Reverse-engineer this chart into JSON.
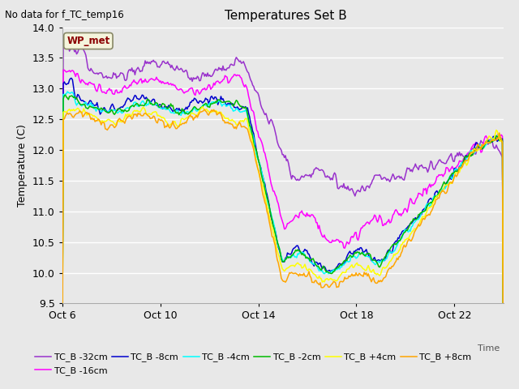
{
  "title": "Temperatures Set B",
  "subtitle": "No data for f_TC_temp16",
  "ylabel": "Temperature (C)",
  "xlabel": "Time",
  "ylim": [
    9.5,
    14.0
  ],
  "yticks": [
    9.5,
    10.0,
    10.5,
    11.0,
    11.5,
    12.0,
    12.5,
    13.0,
    13.5,
    14.0
  ],
  "fig_bg": "#e8e8e8",
  "plot_bg": "#e8e8e8",
  "grid_color": "#ffffff",
  "wp_met_label": "WP_met",
  "wp_met_color": "#8b0000",
  "wp_met_bg": "#f5f5dc",
  "series": [
    {
      "label": "TC_B -32cm",
      "color": "#9932CC"
    },
    {
      "label": "TC_B -16cm",
      "color": "#FF00FF"
    },
    {
      "label": "TC_B -8cm",
      "color": "#0000CD"
    },
    {
      "label": "TC_B -4cm",
      "color": "#00FFFF"
    },
    {
      "label": "TC_B -2cm",
      "color": "#00BB00"
    },
    {
      "label": "TC_B +4cm",
      "color": "#FFFF00"
    },
    {
      "label": "TC_B +8cm",
      "color": "#FFA500"
    }
  ],
  "xtick_labels": [
    "Oct 6",
    "Oct 10",
    "Oct 14",
    "Oct 18",
    "Oct 22"
  ],
  "xtick_positions": [
    0,
    4,
    8,
    12,
    16
  ],
  "total_days": 18
}
